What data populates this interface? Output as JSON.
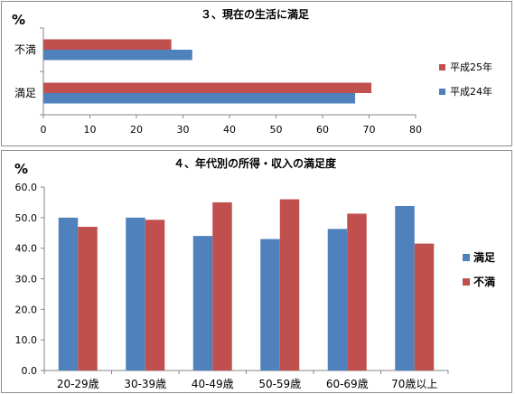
{
  "chart_data": [
    {
      "type": "bar",
      "orientation": "horizontal",
      "title": "３、現在の生活に満足",
      "unit_label": "%",
      "categories": [
        "不満",
        "満足"
      ],
      "series": [
        {
          "name": "平成25年",
          "color": "#c0504d",
          "values": [
            27.5,
            70.5
          ]
        },
        {
          "name": "平成24年",
          "color": "#4f81bd",
          "values": [
            32,
            67
          ]
        }
      ],
      "xlim": [
        0,
        80
      ],
      "ticks": [
        "0",
        "10",
        "20",
        "30",
        "40",
        "50",
        "60",
        "70",
        "80"
      ],
      "grid": false,
      "legend": "right"
    },
    {
      "type": "bar",
      "title": "４、年代別の所得・収入の満足度",
      "unit_label": "%",
      "categories": [
        "20-29歳",
        "30-39歳",
        "40-49歳",
        "50-59歳",
        "60-69歳",
        "70歳以上"
      ],
      "series": [
        {
          "name": "満足",
          "color": "#4f81bd",
          "values": [
            50.0,
            50.0,
            44.0,
            43.0,
            46.3,
            53.8
          ]
        },
        {
          "name": "不満",
          "color": "#c0504d",
          "values": [
            47.0,
            49.3,
            55.0,
            56.0,
            51.3,
            41.5
          ]
        }
      ],
      "ylim": [
        0,
        60
      ],
      "ticks": [
        "0.0",
        "10.0",
        "20.0",
        "30.0",
        "40.0",
        "50.0",
        "60.0"
      ],
      "grid": false,
      "legend": "right"
    }
  ]
}
